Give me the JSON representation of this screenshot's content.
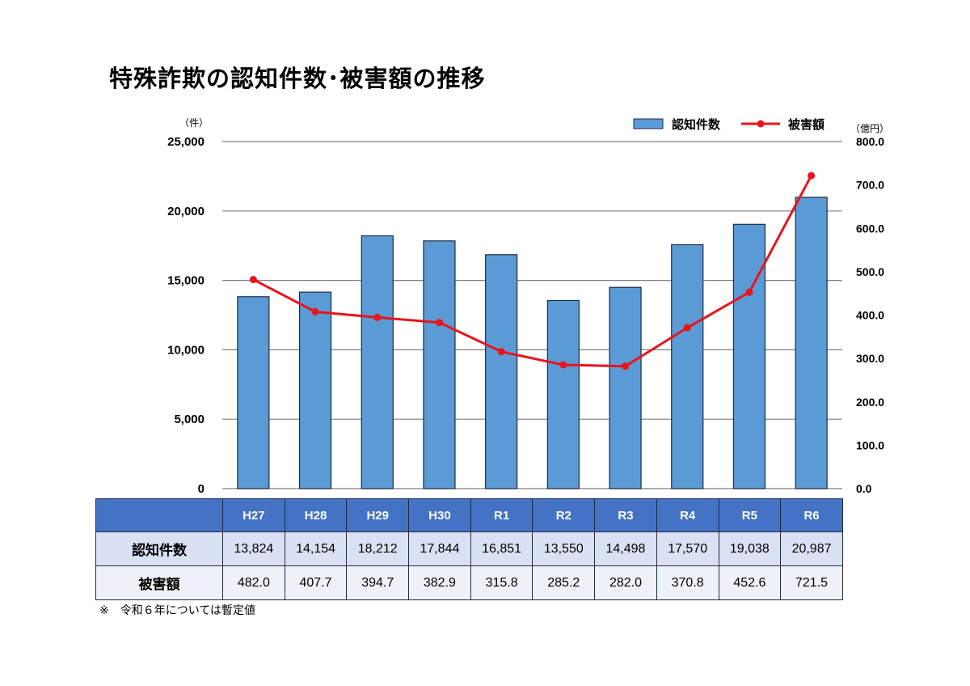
{
  "title": "特殊詐欺の認知件数･被害額の推移",
  "left_unit": "（件）",
  "right_unit": "（億円）",
  "legend": {
    "bars": "認知件数",
    "line": "被害額"
  },
  "note": "※　令和６年については暫定値",
  "colors": {
    "bar_fill": "#5b9bd5",
    "bar_stroke": "#1f2a44",
    "line": "#e8141d",
    "grid": "#7f7f7f",
    "header_bg": "#4472c4"
  },
  "chart_data": {
    "type": "bar",
    "categories": [
      "H27",
      "H28",
      "H29",
      "H30",
      "R1",
      "R2",
      "R3",
      "R4",
      "R5",
      "R6"
    ],
    "series": [
      {
        "name": "認知件数",
        "type": "bar",
        "axis": "left",
        "values": [
          13824,
          14154,
          18212,
          17844,
          16851,
          13550,
          14498,
          17570,
          19038,
          20987
        ]
      },
      {
        "name": "被害額",
        "type": "line",
        "axis": "right",
        "values": [
          482.0,
          407.7,
          394.7,
          382.9,
          315.8,
          285.2,
          282.0,
          370.8,
          452.6,
          721.5
        ]
      }
    ],
    "y_left": {
      "range": [
        0,
        25000
      ],
      "ticks": [
        "0",
        "5,000",
        "10,000",
        "15,000",
        "20,000",
        "25,000"
      ]
    },
    "y_right": {
      "range": [
        0,
        800
      ],
      "ticks": [
        "0.0",
        "100.0",
        "200.0",
        "300.0",
        "400.0",
        "500.0",
        "600.0",
        "700.0",
        "800.0"
      ]
    },
    "grid": true,
    "legend_position": "top-right"
  },
  "table": {
    "rows": [
      {
        "label": "認知件数",
        "values": [
          "13,824",
          "14,154",
          "18,212",
          "17,844",
          "16,851",
          "13,550",
          "14,498",
          "17,570",
          "19,038",
          "20,987"
        ]
      },
      {
        "label": "被害額",
        "values": [
          "482.0",
          "407.7",
          "394.7",
          "382.9",
          "315.8",
          "285.2",
          "282.0",
          "370.8",
          "452.6",
          "721.5"
        ]
      }
    ]
  }
}
